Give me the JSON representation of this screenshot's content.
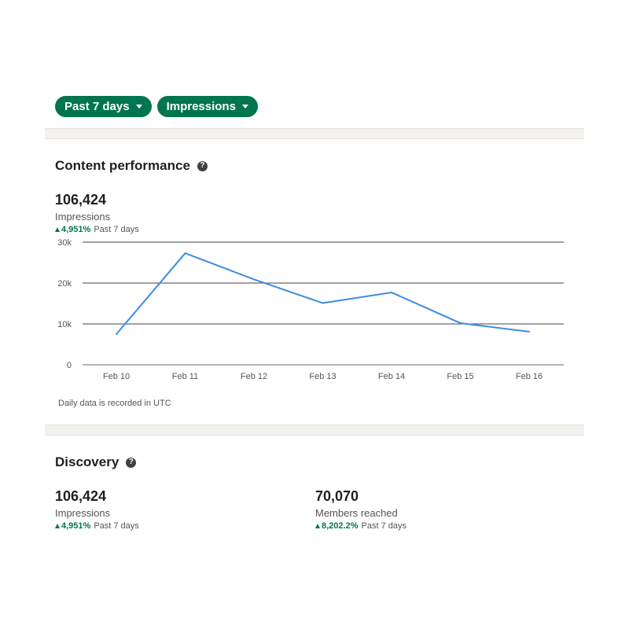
{
  "filters": {
    "period_label": "Past 7 days",
    "metric_label": "Impressions"
  },
  "content_performance": {
    "title": "Content performance",
    "help_icon": "question-circle-icon",
    "value": "106,424",
    "label": "Impressions",
    "change": "4,951%",
    "period": "Past 7 days",
    "footnote": "Daily data is recorded in UTC"
  },
  "discovery": {
    "title": "Discovery",
    "help_icon": "question-circle-icon",
    "impressions": {
      "value": "106,424",
      "label": "Impressions",
      "change": "4,951%",
      "period": "Past 7 days"
    },
    "members": {
      "value": "70,070",
      "label": "Members reached",
      "change": "8,202.2%",
      "period": "Past 7 days"
    }
  },
  "colors": {
    "accent": "#01754f",
    "line": "#3b8de0",
    "grid": "#444444"
  },
  "chart_data": {
    "type": "line",
    "x": [
      "Feb 10",
      "Feb 11",
      "Feb 12",
      "Feb 13",
      "Feb 14",
      "Feb 15",
      "Feb 16"
    ],
    "series": [
      {
        "values": [
          7500,
          27300,
          20900,
          15100,
          17700,
          10200,
          8100
        ]
      }
    ],
    "y_ticks": [
      "0",
      "10k",
      "20k",
      "30k"
    ],
    "y_tick_values": [
      0,
      10000,
      20000,
      30000
    ],
    "ylim": [
      0,
      30000
    ],
    "grid": true,
    "legend": "none"
  }
}
